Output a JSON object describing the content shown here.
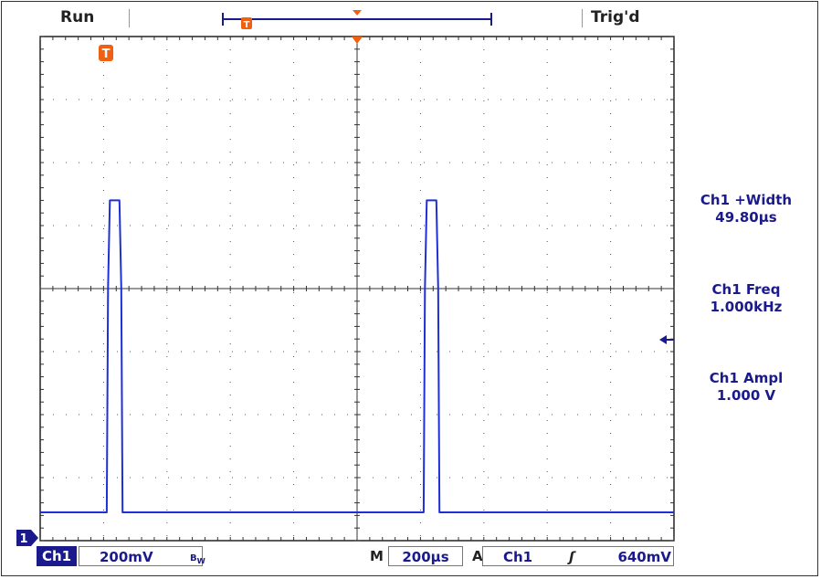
{
  "header": {
    "acq_state": "Run",
    "trigger_state": "Trig'd"
  },
  "measurements": [
    {
      "label": "Ch1 +Width",
      "value": "49.80µs"
    },
    {
      "label": "Ch1 Freq",
      "value": "1.000kHz"
    },
    {
      "label": "Ch1 Ampl",
      "value": "1.000 V"
    }
  ],
  "status_bar": {
    "channel": "Ch1",
    "volts_per_div": "200mV",
    "timebase_prefix": "M",
    "time_per_div": "200µs",
    "trigger_prefix": "A",
    "trigger_source": "Ch1",
    "trigger_slope": "ʃ",
    "trigger_level": "640mV"
  },
  "markers": {
    "channel_marker": "1",
    "trigger_marker": "T"
  },
  "colors": {
    "trace": "#1f2fd8",
    "grid": "#555555",
    "marker_orange": "#f06010",
    "text_blue": "#1a1a8c"
  },
  "chart_data": {
    "type": "line",
    "title": "",
    "xlabel": "",
    "ylabel": "",
    "x_units": "div",
    "y_units": "div",
    "xlim": [
      0,
      10
    ],
    "ylim": [
      -4,
      4
    ],
    "grid": true,
    "series": [
      {
        "x": [
          0,
          1.05,
          1.07,
          1.1,
          1.25,
          1.28,
          1.3,
          6.05,
          6.07,
          6.1,
          6.25,
          6.28,
          6.3,
          10
        ],
        "y": [
          -3.55,
          -3.55,
          0,
          1.4,
          1.4,
          0,
          -3.55,
          -3.55,
          0,
          1.4,
          1.4,
          0,
          -3.55,
          -3.55
        ]
      }
    ]
  }
}
